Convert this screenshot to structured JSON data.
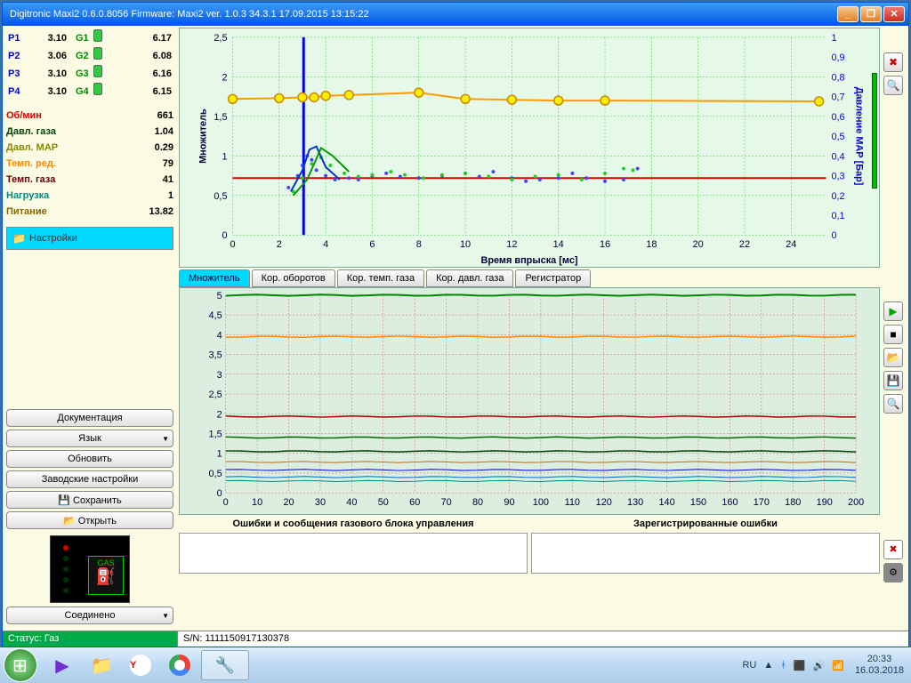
{
  "title": "Digitronic Maxi2 0.6.0.8056 Firmware: Maxi2  ver. 1.0.3  34.3.1   17.09.2015 13:15:22",
  "cylinders": {
    "p_labels": [
      "P1",
      "P2",
      "P3",
      "P4"
    ],
    "p_values": [
      "3.10",
      "3.06",
      "3.10",
      "3.10"
    ],
    "g_labels": [
      "G1",
      "G2",
      "G3",
      "G4"
    ],
    "g_values": [
      "6.17",
      "6.08",
      "6.16",
      "6.15"
    ]
  },
  "params": {
    "rpm": {
      "label": "Об/мин",
      "value": "661"
    },
    "gaspress": {
      "label": "Давл. газа",
      "value": "1.04"
    },
    "map": {
      "label": "Давл. MAP",
      "value": "0.29"
    },
    "redtemp": {
      "label": "Темп. ред.",
      "value": "79"
    },
    "gastemp": {
      "label": "Темп. газа",
      "value": "41"
    },
    "load": {
      "label": "Нагрузка",
      "value": "1"
    },
    "volt": {
      "label": "Питание",
      "value": "13.82"
    }
  },
  "sidebar": {
    "settings": "Настройки",
    "docs": "Документация",
    "lang": "Язык",
    "refresh": "Обновить",
    "factory": "Заводские настройки",
    "save": "Сохранить",
    "open": "Открыть",
    "connected": "Соединено",
    "gas": "GAS"
  },
  "tabs": [
    "Множитель",
    "Кор. оборотов",
    "Кор. темп. газа",
    "Кор. давл. газа",
    "Регистратор"
  ],
  "chart_top": {
    "ylabel": "Множитель",
    "y2label": "Давление МАР [Бар]",
    "xlabel": "Время впрыска [мс]",
    "x_ticks": [
      0,
      2,
      4,
      6,
      8,
      10,
      12,
      14,
      16,
      18,
      20,
      22,
      24
    ],
    "y_ticks": [
      "0",
      "0,5",
      "1",
      "1,5",
      "2",
      "2,5"
    ],
    "y2_ticks": [
      "0",
      "0,1",
      "0,2",
      "0,3",
      "0,4",
      "0,5",
      "0,6",
      "0,7",
      "0,8",
      "0,9",
      "1"
    ],
    "xlim": [
      0,
      25.5
    ],
    "ylim": [
      0,
      2.5
    ],
    "y2lim": [
      0,
      1
    ],
    "series_orange": {
      "color": "#ff9900",
      "marker": "circle",
      "data": [
        [
          0,
          1.72
        ],
        [
          2,
          1.73
        ],
        [
          3,
          1.74
        ],
        [
          3.5,
          1.74
        ],
        [
          4,
          1.76
        ],
        [
          5,
          1.77
        ],
        [
          8,
          1.8
        ],
        [
          10,
          1.72
        ],
        [
          12,
          1.71
        ],
        [
          14,
          1.7
        ],
        [
          16,
          1.7
        ],
        [
          25.2,
          1.69
        ]
      ]
    },
    "series_red": {
      "color": "#dd0000",
      "data": [
        [
          0,
          0.72
        ],
        [
          25.5,
          0.72
        ]
      ]
    },
    "series_blue_curve": {
      "color": "#0033cc",
      "width": 2,
      "data": [
        [
          2.5,
          0.55
        ],
        [
          3.0,
          0.82
        ],
        [
          3.3,
          1.08
        ],
        [
          3.6,
          1.12
        ],
        [
          4.0,
          0.86
        ],
        [
          4.6,
          0.7
        ]
      ]
    },
    "series_green_curve": {
      "color": "#009900",
      "width": 2,
      "data": [
        [
          2.6,
          0.5
        ],
        [
          3.2,
          0.7
        ],
        [
          3.8,
          1.1
        ],
        [
          4.3,
          1.0
        ],
        [
          5.0,
          0.8
        ]
      ]
    },
    "cursor_x": 3.05,
    "scatter_blue": {
      "color": "#4444ff",
      "points": [
        [
          2.4,
          0.6
        ],
        [
          2.8,
          0.75
        ],
        [
          3.0,
          0.88
        ],
        [
          3.2,
          1.0
        ],
        [
          3.4,
          0.95
        ],
        [
          3.6,
          0.82
        ],
        [
          4.0,
          0.75
        ],
        [
          4.4,
          0.7
        ],
        [
          5.0,
          0.72
        ],
        [
          5.4,
          0.7
        ],
        [
          6.0,
          0.75
        ],
        [
          6.6,
          0.78
        ],
        [
          7.2,
          0.74
        ],
        [
          8.0,
          0.72
        ],
        [
          9.0,
          0.75
        ],
        [
          10.0,
          0.78
        ],
        [
          10.6,
          0.74
        ],
        [
          11.2,
          0.8
        ],
        [
          12.0,
          0.72
        ],
        [
          12.6,
          0.68
        ],
        [
          13.2,
          0.7
        ],
        [
          14.0,
          0.72
        ],
        [
          14.6,
          0.78
        ],
        [
          15.2,
          0.72
        ],
        [
          16.0,
          0.68
        ],
        [
          16.8,
          0.7
        ],
        [
          17.4,
          0.84
        ]
      ]
    },
    "scatter_green": {
      "color": "#22cc22",
      "points": [
        [
          2.6,
          0.55
        ],
        [
          3.0,
          0.72
        ],
        [
          3.4,
          0.9
        ],
        [
          3.8,
          0.98
        ],
        [
          4.2,
          0.88
        ],
        [
          4.8,
          0.78
        ],
        [
          5.4,
          0.74
        ],
        [
          6.0,
          0.76
        ],
        [
          6.8,
          0.8
        ],
        [
          7.4,
          0.76
        ],
        [
          8.2,
          0.72
        ],
        [
          9.0,
          0.76
        ],
        [
          10.0,
          0.78
        ],
        [
          11.0,
          0.74
        ],
        [
          12.0,
          0.7
        ],
        [
          13.0,
          0.74
        ],
        [
          14.0,
          0.76
        ],
        [
          15.0,
          0.7
        ],
        [
          16.0,
          0.78
        ],
        [
          16.8,
          0.84
        ],
        [
          17.2,
          0.82
        ]
      ]
    },
    "bg": "#e6f8e8",
    "grid": "#22cc22"
  },
  "chart_bottom": {
    "x_ticks": [
      0,
      10,
      20,
      30,
      40,
      50,
      60,
      70,
      80,
      90,
      100,
      110,
      120,
      130,
      140,
      150,
      160,
      170,
      180,
      190,
      200
    ],
    "y_ticks": [
      "0",
      "0,5",
      "1",
      "1,5",
      "2",
      "2,5",
      "3",
      "3,5",
      "4",
      "4,5",
      "5"
    ],
    "xlim": [
      0,
      200
    ],
    "ylim": [
      0,
      5
    ],
    "lines": [
      {
        "color": "#008800",
        "y": 5.0,
        "w": 2
      },
      {
        "color": "#ff8800",
        "y": 3.95,
        "w": 1.5
      },
      {
        "color": "#aa0000",
        "y": 1.93,
        "w": 1.5
      },
      {
        "color": "#006600",
        "y": 1.4,
        "w": 1.5
      },
      {
        "color": "#004400",
        "y": 1.05,
        "w": 1.5
      },
      {
        "color": "#cc6600",
        "y": 0.78,
        "w": 1
      },
      {
        "color": "#0000cc",
        "y": 0.58,
        "w": 1
      },
      {
        "color": "#0066cc",
        "y": 0.4,
        "w": 1
      },
      {
        "color": "#008888",
        "y": 0.3,
        "w": 1
      }
    ],
    "bg": "#dceee0",
    "grid": "#cc4444"
  },
  "messages": {
    "hdr1": "Ошибки и сообщения газового блока управления",
    "hdr2": "Зарегистрированные ошибки"
  },
  "status": {
    "gas": "Статус: Газ",
    "sn": "S/N: 1111150917130378"
  },
  "taskbar": {
    "lang": "RU",
    "time": "20:33",
    "date": "16.03.2018"
  }
}
